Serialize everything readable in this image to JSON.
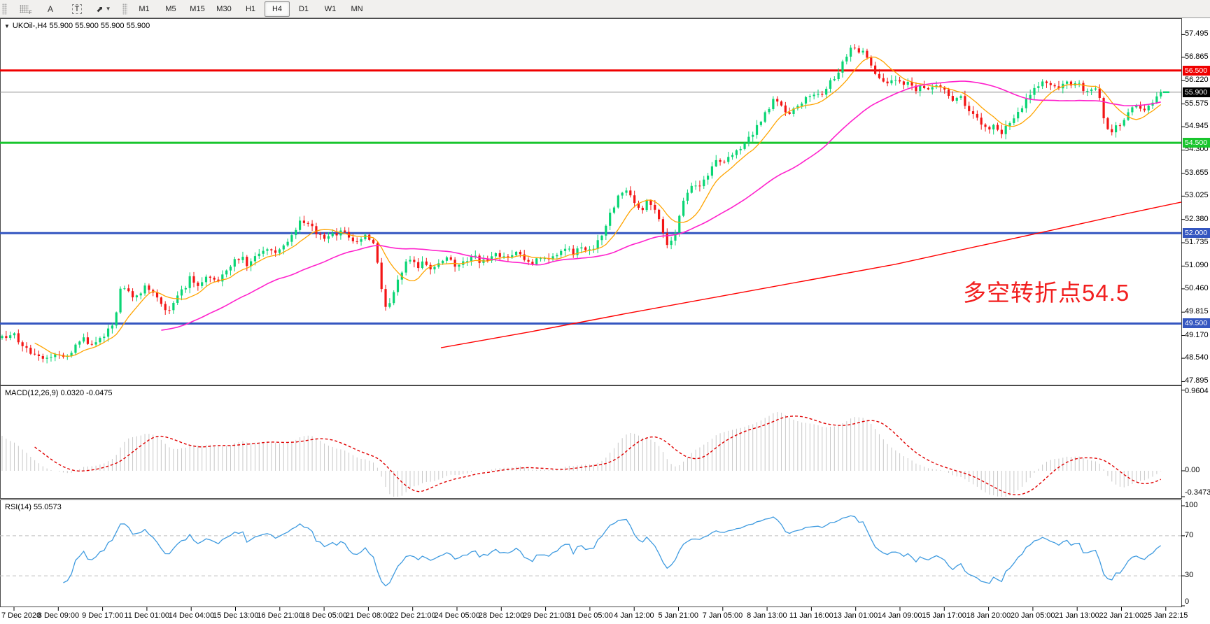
{
  "toolbar": {
    "label_a": "A",
    "label_t": "T",
    "timeframes": [
      "M1",
      "M5",
      "M15",
      "M30",
      "H1",
      "H4",
      "D1",
      "W1",
      "MN"
    ],
    "active_timeframe": "H4"
  },
  "header": {
    "symbol_title": "UKOil-,H4",
    "ohlc_text": "55.900 55.900 55.900 55.900"
  },
  "annotation": {
    "text": "多空转折点54.5",
    "color": "#f21f1f"
  },
  "macd_panel_label": "MACD(12,26,9) 0.0320 -0.0475",
  "rsi_panel_label": "RSI(14) 55.0573",
  "chart_data": {
    "type": "candlestick",
    "symbol": "UKOil-",
    "timeframe": "H4",
    "current_price": 55.9,
    "price_axis_range": [
      47.845,
      57.87
    ],
    "price_ticks": [
      "57.495",
      "56.865",
      "56.220",
      "55.575",
      "54.945",
      "54.300",
      "53.655",
      "53.025",
      "52.380",
      "51.735",
      "51.090",
      "50.460",
      "49.815",
      "49.170",
      "48.540",
      "47.895"
    ],
    "hlines": [
      {
        "value": 56.5,
        "label": "56.500",
        "color": "#f00000",
        "width": 3
      },
      {
        "value": 55.9,
        "label": "55.900",
        "color": "#8a8a8a",
        "width": 1,
        "badge_bg": "#000000",
        "role": "current-price"
      },
      {
        "value": 54.5,
        "label": "54.500",
        "color": "#18c52d",
        "width": 3
      },
      {
        "value": 52.0,
        "label": "52.000",
        "color": "#3456c0",
        "width": 3
      },
      {
        "value": 49.5,
        "label": "49.500",
        "color": "#3456c0",
        "width": 3
      }
    ],
    "colors": {
      "bull": "#0ad574",
      "bear": "#f31515",
      "ma_fast": "#ffa400",
      "ma_mid": "#ff22cc",
      "ma_slow": "#ff0000",
      "macd_hist": "#c8c8c8",
      "macd_signal": "#e00000",
      "rsi_line": "#3f9be0",
      "rsi_levels": "#c0c0c0"
    },
    "ma_fast_period": 9,
    "ma_mid_period": 40,
    "ma_slow_path": [
      [
        630,
        48.83
      ],
      [
        760,
        49.28
      ],
      [
        890,
        49.76
      ],
      [
        1020,
        50.22
      ],
      [
        1150,
        50.68
      ],
      [
        1280,
        51.14
      ],
      [
        1400,
        51.65
      ],
      [
        1500,
        52.07
      ],
      [
        1600,
        52.5
      ],
      [
        1688,
        52.86
      ]
    ],
    "price_path": [
      [
        0,
        49.1
      ],
      [
        18,
        49.22
      ],
      [
        35,
        48.82
      ],
      [
        52,
        48.62
      ],
      [
        65,
        48.5
      ],
      [
        78,
        48.72
      ],
      [
        92,
        48.58
      ],
      [
        105,
        48.8
      ],
      [
        118,
        49.12
      ],
      [
        130,
        48.9
      ],
      [
        142,
        49.05
      ],
      [
        154,
        49.32
      ],
      [
        164,
        49.55
      ],
      [
        171,
        50.52
      ],
      [
        182,
        50.42
      ],
      [
        194,
        50.18
      ],
      [
        206,
        50.55
      ],
      [
        218,
        50.42
      ],
      [
        230,
        50.08
      ],
      [
        240,
        49.85
      ],
      [
        252,
        50.18
      ],
      [
        264,
        50.5
      ],
      [
        272,
        50.78
      ],
      [
        284,
        50.55
      ],
      [
        296,
        50.8
      ],
      [
        308,
        50.62
      ],
      [
        320,
        50.95
      ],
      [
        332,
        51.18
      ],
      [
        344,
        51.35
      ],
      [
        356,
        51.08
      ],
      [
        368,
        51.42
      ],
      [
        382,
        51.58
      ],
      [
        395,
        51.42
      ],
      [
        408,
        51.68
      ],
      [
        420,
        52.05
      ],
      [
        430,
        52.32
      ],
      [
        440,
        52.28
      ],
      [
        452,
        52.02
      ],
      [
        464,
        51.82
      ],
      [
        476,
        51.95
      ],
      [
        488,
        52.08
      ],
      [
        500,
        51.88
      ],
      [
        512,
        51.75
      ],
      [
        524,
        51.92
      ],
      [
        536,
        51.6
      ],
      [
        545,
        50.45
      ],
      [
        553,
        49.85
      ],
      [
        561,
        50.22
      ],
      [
        569,
        50.68
      ],
      [
        577,
        51.08
      ],
      [
        586,
        51.28
      ],
      [
        596,
        51.05
      ],
      [
        606,
        51.18
      ],
      [
        616,
        51.0
      ],
      [
        628,
        51.15
      ],
      [
        640,
        51.28
      ],
      [
        652,
        51.08
      ],
      [
        664,
        51.22
      ],
      [
        676,
        51.38
      ],
      [
        688,
        51.18
      ],
      [
        700,
        51.3
      ],
      [
        712,
        51.44
      ],
      [
        724,
        51.28
      ],
      [
        736,
        51.48
      ],
      [
        748,
        51.32
      ],
      [
        760,
        51.18
      ],
      [
        772,
        51.38
      ],
      [
        784,
        51.22
      ],
      [
        796,
        51.42
      ],
      [
        808,
        51.58
      ],
      [
        820,
        51.44
      ],
      [
        832,
        51.62
      ],
      [
        844,
        51.52
      ],
      [
        858,
        51.85
      ],
      [
        870,
        52.45
      ],
      [
        882,
        52.95
      ],
      [
        893,
        53.22
      ],
      [
        903,
        52.95
      ],
      [
        915,
        52.6
      ],
      [
        927,
        52.92
      ],
      [
        938,
        52.55
      ],
      [
        948,
        51.95
      ],
      [
        955,
        51.58
      ],
      [
        963,
        51.95
      ],
      [
        972,
        52.55
      ],
      [
        981,
        53.1
      ],
      [
        990,
        53.42
      ],
      [
        1000,
        53.3
      ],
      [
        1012,
        53.66
      ],
      [
        1024,
        54.05
      ],
      [
        1036,
        53.98
      ],
      [
        1048,
        54.26
      ],
      [
        1060,
        54.42
      ],
      [
        1072,
        54.65
      ],
      [
        1084,
        55.02
      ],
      [
        1095,
        55.35
      ],
      [
        1106,
        55.72
      ],
      [
        1116,
        55.48
      ],
      [
        1127,
        55.3
      ],
      [
        1139,
        55.58
      ],
      [
        1150,
        55.7
      ],
      [
        1161,
        55.92
      ],
      [
        1171,
        55.78
      ],
      [
        1181,
        56.05
      ],
      [
        1191,
        56.28
      ],
      [
        1201,
        56.55
      ],
      [
        1210,
        56.95
      ],
      [
        1218,
        57.22
      ],
      [
        1225,
        56.92
      ],
      [
        1231,
        57.12
      ],
      [
        1239,
        56.85
      ],
      [
        1249,
        56.48
      ],
      [
        1259,
        56.28
      ],
      [
        1269,
        56.12
      ],
      [
        1279,
        56.28
      ],
      [
        1289,
        56.08
      ],
      [
        1299,
        56.18
      ],
      [
        1309,
        55.94
      ],
      [
        1319,
        56.08
      ],
      [
        1329,
        55.98
      ],
      [
        1339,
        56.12
      ],
      [
        1349,
        55.92
      ],
      [
        1359,
        55.68
      ],
      [
        1369,
        55.84
      ],
      [
        1379,
        55.58
      ],
      [
        1391,
        55.28
      ],
      [
        1402,
        55.02
      ],
      [
        1413,
        54.85
      ],
      [
        1423,
        55.0
      ],
      [
        1432,
        54.74
      ],
      [
        1441,
        55.05
      ],
      [
        1451,
        55.28
      ],
      [
        1461,
        55.52
      ],
      [
        1472,
        55.88
      ],
      [
        1482,
        56.06
      ],
      [
        1492,
        56.26
      ],
      [
        1502,
        56.12
      ],
      [
        1512,
        55.94
      ],
      [
        1522,
        56.18
      ],
      [
        1532,
        56.04
      ],
      [
        1542,
        56.14
      ],
      [
        1552,
        55.88
      ],
      [
        1562,
        56.08
      ],
      [
        1572,
        55.68
      ],
      [
        1580,
        55.0
      ],
      [
        1588,
        54.76
      ],
      [
        1596,
        54.95
      ],
      [
        1605,
        55.14
      ],
      [
        1615,
        55.38
      ],
      [
        1625,
        55.54
      ],
      [
        1633,
        55.4
      ],
      [
        1641,
        55.55
      ],
      [
        1650,
        55.72
      ],
      [
        1658,
        55.9
      ]
    ],
    "macd": {
      "params": [
        12,
        26,
        9
      ],
      "current_macd": 0.032,
      "current_signal": -0.0475,
      "axis_labels": [
        {
          "text": "0.9604",
          "value": 0.9604
        },
        {
          "text": "0.00",
          "value": 0
        },
        {
          "text": "-0.3473",
          "value": -0.3473
        }
      ]
    },
    "rsi": {
      "period": 14,
      "current": 55.0573,
      "levels": [
        70,
        30
      ],
      "axis_labels": [
        {
          "text": "100",
          "value": 100
        },
        {
          "text": "70",
          "value": 70
        },
        {
          "text": "30",
          "value": 30
        },
        {
          "text": "0",
          "value": 0
        }
      ]
    },
    "time_labels": [
      "7 Dec 2020",
      "8 Dec 09:00",
      "9 Dec 17:00",
      "11 Dec 01:00",
      "14 Dec 04:00",
      "15 Dec 13:00",
      "16 Dec 21:00",
      "18 Dec 05:00",
      "21 Dec 08:00",
      "22 Dec 21:00",
      "24 Dec 05:00",
      "28 Dec 12:00",
      "29 Dec 21:00",
      "31 Dec 05:00",
      "4 Jan 12:00",
      "5 Jan 21:00",
      "7 Jan 05:00",
      "8 Jan 13:00",
      "11 Jan 16:00",
      "13 Jan 01:00",
      "14 Jan 09:00",
      "15 Jan 17:00",
      "18 Jan 20:00",
      "20 Jan 05:00",
      "21 Jan 13:00",
      "22 Jan 21:00",
      "25 Jan 22:15"
    ]
  }
}
